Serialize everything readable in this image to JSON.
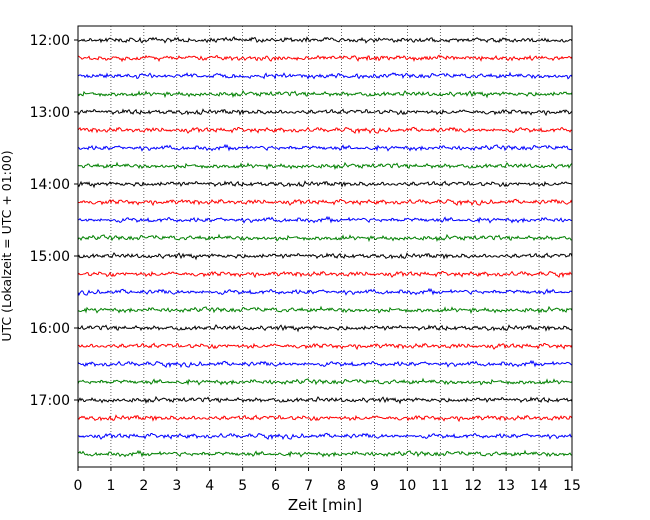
{
  "chart_data": {
    "type": "line",
    "xlabel": "Zeit  [min]",
    "ylabel": "UTC (Lokalzeit = UTC + 01:00)",
    "xlim": [
      0,
      15
    ],
    "x_ticks": [
      "0",
      "1",
      "2",
      "3",
      "4",
      "5",
      "6",
      "7",
      "8",
      "9",
      "10",
      "11",
      "12",
      "13",
      "14",
      "15"
    ],
    "y_ticks": [
      "12:00",
      "13:00",
      "14:00",
      "15:00",
      "16:00",
      "17:00"
    ],
    "grid": "vertical dotted lines at each minute",
    "trace_interval_min": 15,
    "trace_start": "12:00",
    "trace_end": "17:45",
    "trace_colors": [
      "#000000",
      "#ff0000",
      "#0000ff",
      "#008000"
    ]
  }
}
